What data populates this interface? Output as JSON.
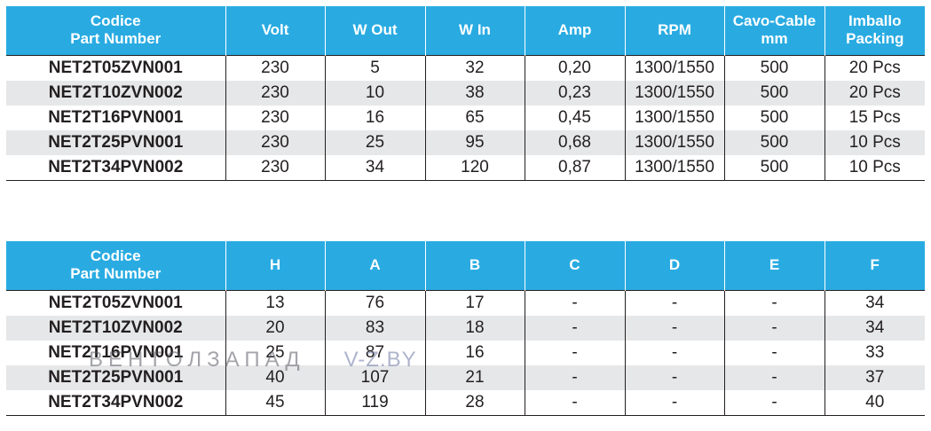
{
  "table1": {
    "headers": [
      [
        "Codice",
        "Part Number"
      ],
      [
        "Volt"
      ],
      [
        "W Out"
      ],
      [
        "W In"
      ],
      [
        "Amp"
      ],
      [
        "RPM"
      ],
      [
        "Cavo-Cable",
        "mm"
      ],
      [
        "Imballo",
        "Packing"
      ]
    ],
    "rows": [
      [
        "NET2T05ZVN001",
        "230",
        "5",
        "32",
        "0,20",
        "1300/1550",
        "500",
        "20 Pcs"
      ],
      [
        "NET2T10ZVN002",
        "230",
        "10",
        "38",
        "0,23",
        "1300/1550",
        "500",
        "20 Pcs"
      ],
      [
        "NET2T16PVN001",
        "230",
        "16",
        "65",
        "0,45",
        "1300/1550",
        "500",
        "15 Pcs"
      ],
      [
        "NET2T25PVN001",
        "230",
        "25",
        "95",
        "0,68",
        "1300/1550",
        "500",
        "10 Pcs"
      ],
      [
        "NET2T34PVN002",
        "230",
        "34",
        "120",
        "0,87",
        "1300/1550",
        "500",
        "10 Pcs"
      ]
    ]
  },
  "table2": {
    "headers": [
      [
        "Codice",
        "Part Number"
      ],
      [
        "H"
      ],
      [
        "A"
      ],
      [
        "B"
      ],
      [
        "C"
      ],
      [
        "D"
      ],
      [
        "E"
      ],
      [
        "F"
      ]
    ],
    "rows": [
      [
        "NET2T05ZVN001",
        "13",
        "76",
        "17",
        "-",
        "-",
        "-",
        "34"
      ],
      [
        "NET2T10ZVN002",
        "20",
        "83",
        "18",
        "-",
        "-",
        "-",
        "34"
      ],
      [
        "NET2T16PVN001",
        "25",
        "87",
        "16",
        "-",
        "-",
        "-",
        "33"
      ],
      [
        "NET2T25PVN001",
        "40",
        "107",
        "21",
        "-",
        "-",
        "-",
        "37"
      ],
      [
        "NET2T34PVN002",
        "45",
        "119",
        "28",
        "-",
        "-",
        "-",
        "40"
      ]
    ]
  },
  "watermark": {
    "brand": "ВЕНТОЛЗАПАД",
    "site": "V-Z.BY"
  },
  "colors": {
    "header_bg": "#29abe2",
    "header_text": "#ffffff",
    "stripe": "#e6e7e8",
    "rule": "#231f20"
  }
}
